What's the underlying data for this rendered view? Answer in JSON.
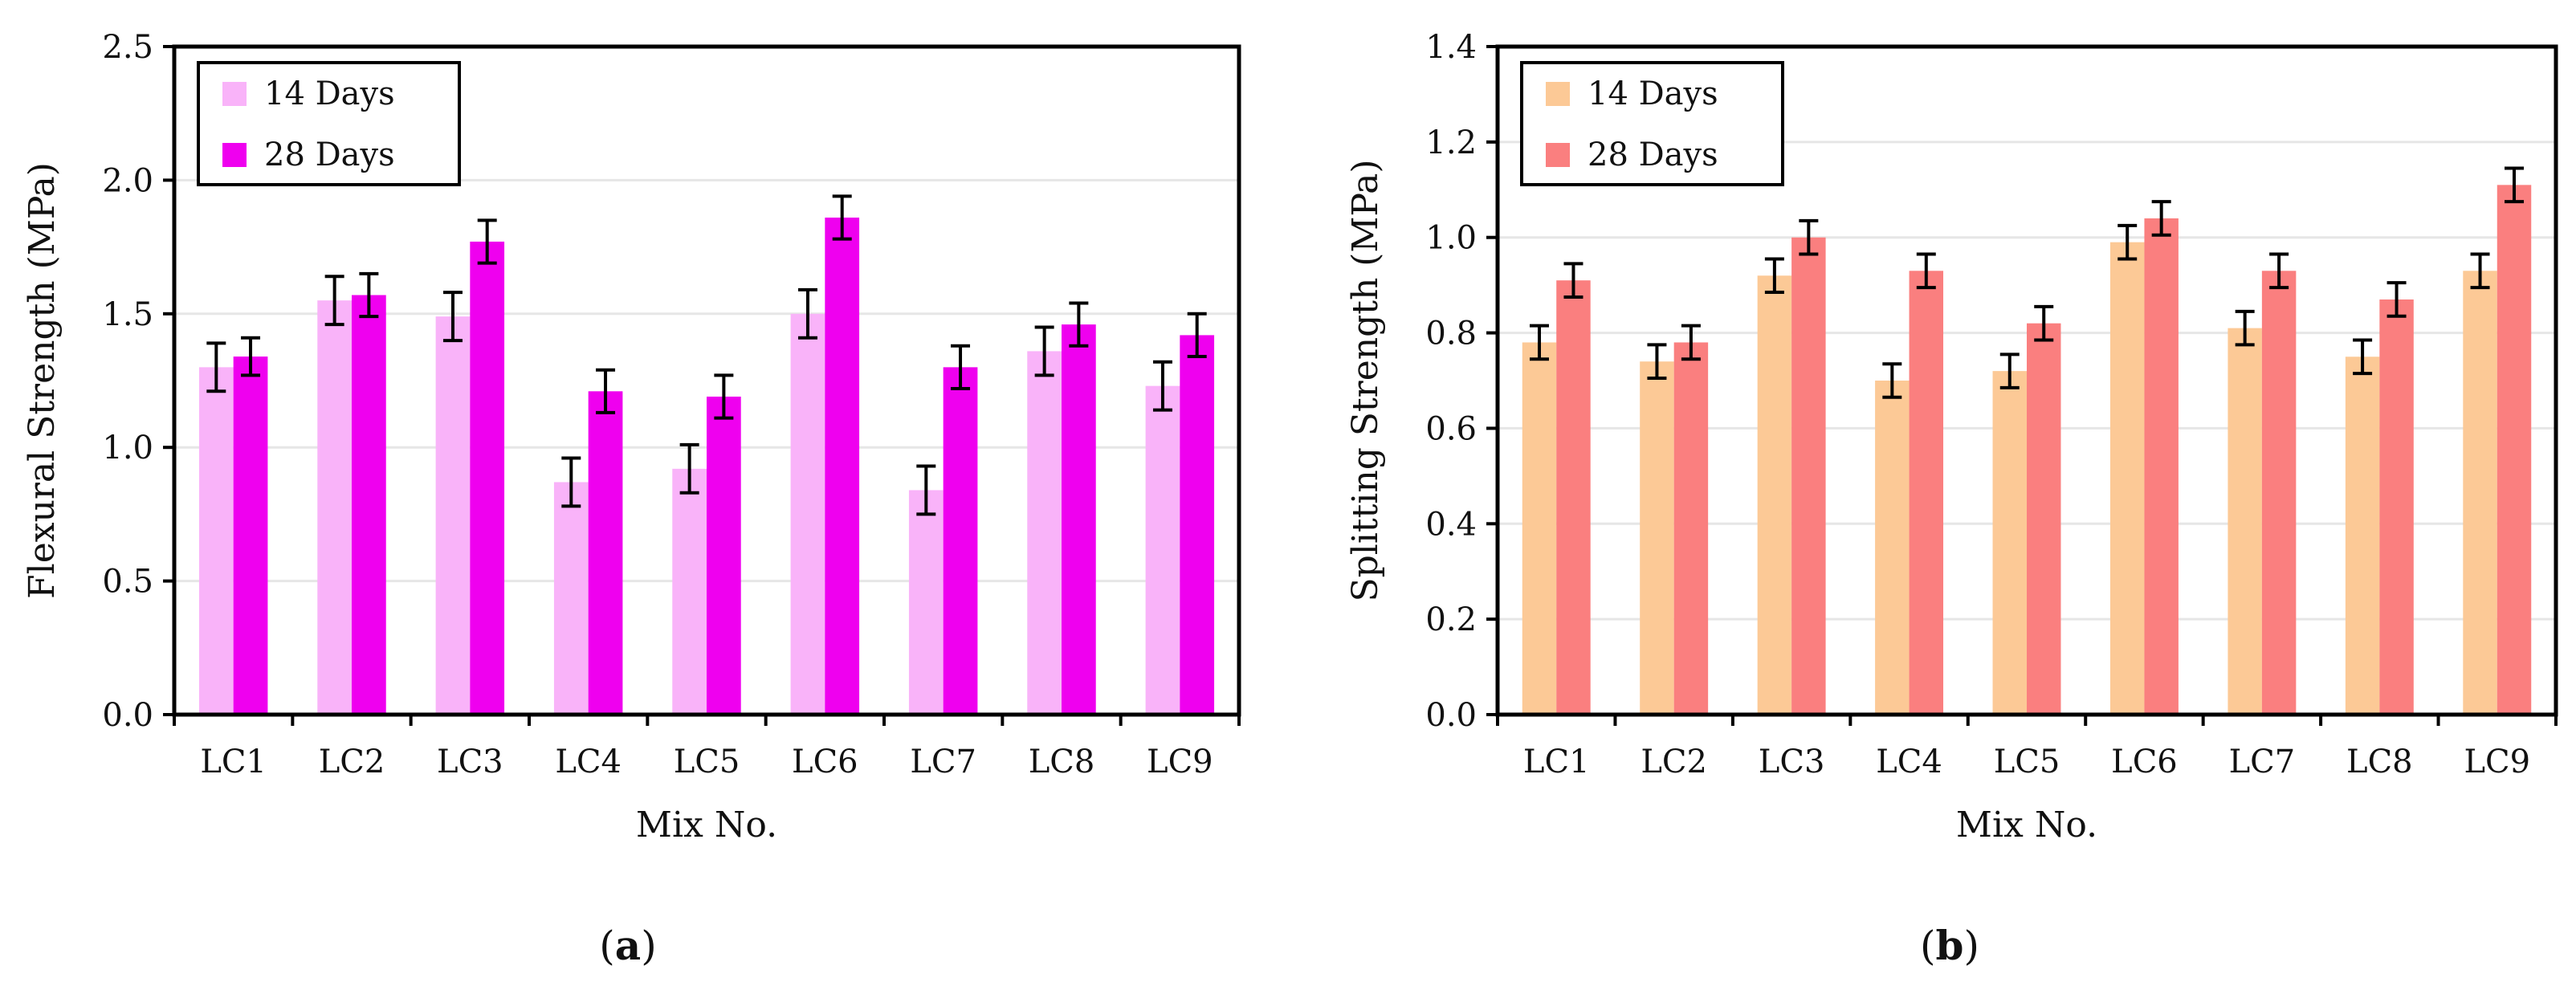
{
  "chart_data": [
    {
      "panel_label": "a",
      "type": "bar",
      "ylabel": "Flexural Strength (MPa)",
      "xlabel": "Mix No.",
      "ylim": [
        0,
        2.5
      ],
      "yticks": [
        "0.0",
        "0.5",
        "1.0",
        "1.5",
        "2.0",
        "2.5"
      ],
      "ytick_values": [
        0,
        0.5,
        1.0,
        1.5,
        2.0,
        2.5
      ],
      "grid": true,
      "legend_position": "top-left",
      "categories": [
        "LC1",
        "LC2",
        "LC3",
        "LC4",
        "LC5",
        "LC6",
        "LC7",
        "LC8",
        "LC9"
      ],
      "series": [
        {
          "name": "14 Days",
          "color": "#f9b3f9",
          "values": [
            1.3,
            1.55,
            1.49,
            0.87,
            0.92,
            1.5,
            0.84,
            1.36,
            1.23
          ],
          "errors": [
            0.09,
            0.09,
            0.09,
            0.09,
            0.09,
            0.09,
            0.09,
            0.09,
            0.09
          ]
        },
        {
          "name": "28 Days",
          "color": "#ef00ef",
          "values": [
            1.34,
            1.57,
            1.77,
            1.21,
            1.19,
            1.86,
            1.3,
            1.46,
            1.42
          ],
          "errors": [
            0.07,
            0.08,
            0.08,
            0.08,
            0.08,
            0.08,
            0.08,
            0.08,
            0.08
          ]
        }
      ]
    },
    {
      "panel_label": "b",
      "type": "bar",
      "ylabel": "Splitting Strength (MPa)",
      "xlabel": "Mix No.",
      "ylim": [
        0,
        1.4
      ],
      "yticks": [
        "0.0",
        "0.2",
        "0.4",
        "0.6",
        "0.8",
        "1.0",
        "1.2",
        "1.4"
      ],
      "ytick_values": [
        0,
        0.2,
        0.4,
        0.6,
        0.8,
        1.0,
        1.2,
        1.4
      ],
      "grid": true,
      "legend_position": "top-left",
      "categories": [
        "LC1",
        "LC2",
        "LC3",
        "LC4",
        "LC5",
        "LC6",
        "LC7",
        "LC8",
        "LC9"
      ],
      "series": [
        {
          "name": "14 Days",
          "color": "#fcc996",
          "values": [
            0.78,
            0.74,
            0.92,
            0.7,
            0.72,
            0.99,
            0.81,
            0.75,
            0.93
          ],
          "errors": [
            0.035,
            0.035,
            0.035,
            0.035,
            0.035,
            0.035,
            0.035,
            0.035,
            0.035
          ]
        },
        {
          "name": "28 Days",
          "color": "#fa7f7f",
          "values": [
            0.91,
            0.78,
            1.0,
            0.93,
            0.82,
            1.04,
            0.93,
            0.87,
            1.11
          ],
          "errors": [
            0.035,
            0.035,
            0.035,
            0.035,
            0.035,
            0.035,
            0.035,
            0.035,
            0.035
          ]
        }
      ]
    }
  ]
}
